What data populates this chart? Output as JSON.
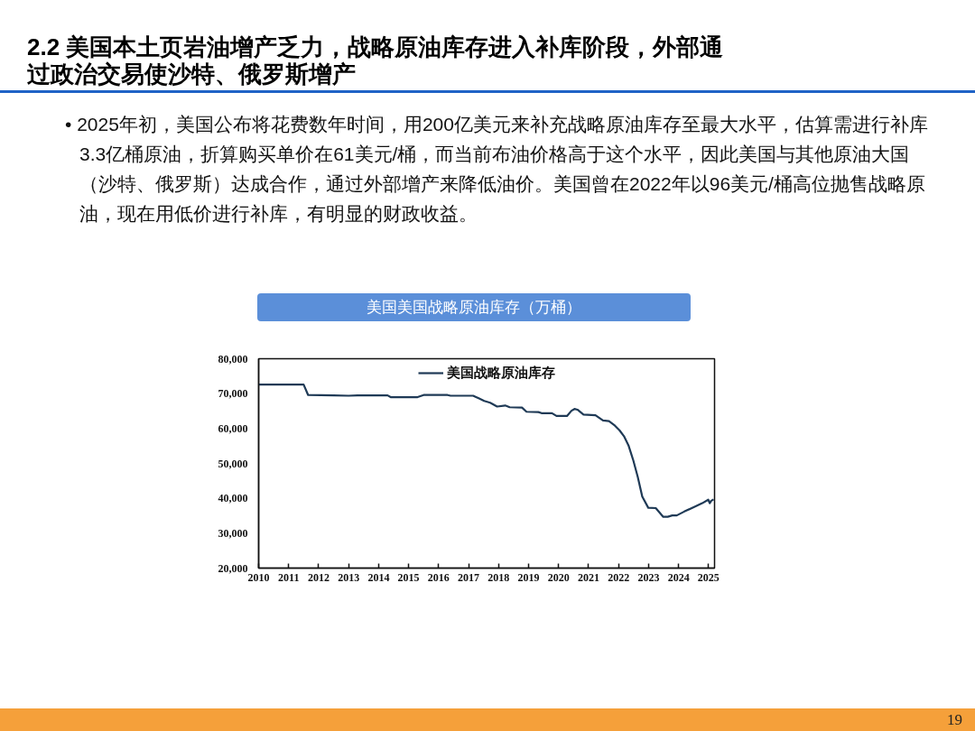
{
  "chart_data": {
    "type": "line",
    "title": "2.2 美国本土页岩油增产乏力，战略原油库存进入补库阶段，外部通过政治交易使沙特、俄罗斯增产",
    "subtitle": "美国美国战略原油库存（万桶）",
    "annotations": [
      "• 2025年初，美国公布将花费数年时间，用200亿美元来补充战略原油库存至最大水平，估算需进行补库3.3亿桶原油，折算购买单价在61美元/桶，而当前布油价格高于这个水平，因此美国与其他原油大国（沙特、俄罗斯）达成合作，通过外部增产来降低油价。美国曾在2022年以96美元/桶高位抛售战略原油，现在用低价进行补库，有明显的财政收益。",
      "19"
    ],
    "x": [
      2010.0,
      2011.5,
      2011.65,
      2012.5,
      2013.0,
      2013.3,
      2014.3,
      2014.4,
      2015.3,
      2015.5,
      2016.3,
      2016.4,
      2017.15,
      2017.35,
      2017.52,
      2017.72,
      2017.95,
      2018.22,
      2018.37,
      2018.78,
      2018.93,
      2019.33,
      2019.43,
      2019.78,
      2019.93,
      2020.28,
      2020.43,
      2020.53,
      2020.63,
      2020.83,
      2021.23,
      2021.48,
      2021.68,
      2021.88,
      2022.03,
      2022.18,
      2022.33,
      2022.49,
      2022.64,
      2022.79,
      2022.99,
      2023.24,
      2023.49,
      2023.64,
      2023.79,
      2023.94,
      2024.19,
      2024.49,
      2024.79,
      2024.99,
      2025.04,
      2025.09,
      2025.17
    ],
    "series": [
      {
        "name": "美国战略原油库存",
        "color": "#1f3a56",
        "values": [
          72600,
          72600,
          69600,
          69500,
          69400,
          69500,
          69500,
          69000,
          69000,
          69600,
          69600,
          69400,
          69400,
          68600,
          67900,
          67400,
          66300,
          66600,
          66100,
          66000,
          64800,
          64700,
          64400,
          64400,
          63600,
          63600,
          65100,
          65600,
          65400,
          64000,
          63800,
          62300,
          62100,
          60800,
          59500,
          57800,
          55200,
          50900,
          46100,
          40500,
          37300,
          37200,
          34700,
          34700,
          35100,
          35100,
          36200,
          37400,
          38600,
          39600,
          38600,
          39300,
          39700
        ]
      }
    ],
    "xlim": [
      2010,
      2025.2
    ],
    "xticks": [
      2010,
      2011,
      2012,
      2013,
      2014,
      2015,
      2016,
      2017,
      2018,
      2019,
      2020,
      2021,
      2022,
      2023,
      2024,
      2025
    ],
    "ylim": [
      20000,
      80000
    ],
    "yticks": [
      {
        "value": 20000,
        "label": "20,000"
      },
      {
        "value": 30000,
        "label": "30,000"
      },
      {
        "value": 40000,
        "label": "40,000"
      },
      {
        "value": 50000,
        "label": "50,000"
      },
      {
        "value": 60000,
        "label": "60,000"
      },
      {
        "value": 70000,
        "label": "70,000"
      },
      {
        "value": 80000,
        "label": "80,000"
      }
    ],
    "legend": "top",
    "line_style": "solid"
  }
}
